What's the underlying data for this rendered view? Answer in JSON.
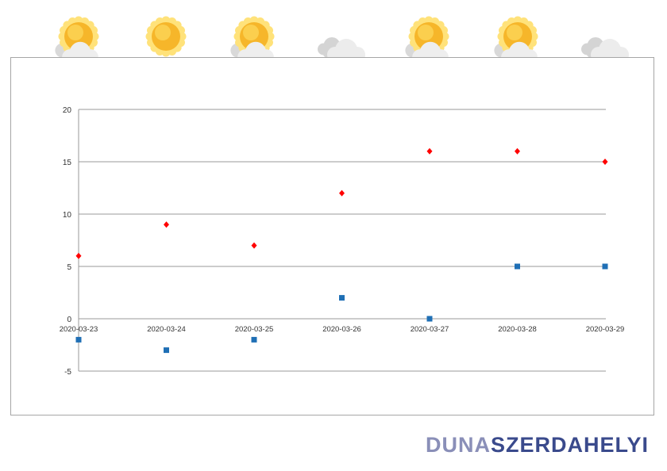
{
  "chart_data": {
    "type": "scatter",
    "categories": [
      "2020-03-23",
      "2020-03-24",
      "2020-03-25",
      "2020-03-26",
      "2020-03-27",
      "2020-03-28",
      "2020-03-29"
    ],
    "series": [
      {
        "values": [
          6,
          9,
          7,
          12,
          16,
          16,
          15
        ],
        "color": "#ff0000",
        "marker": "diamond"
      },
      {
        "values": [
          -2,
          -3,
          -2,
          2,
          0,
          5,
          5
        ],
        "color": "#1f6fb5",
        "marker": "square"
      }
    ],
    "y_ticks": [
      "20",
      "15",
      "10",
      "5",
      "0",
      "-5"
    ],
    "ylim": [
      -5,
      20
    ],
    "grid": true,
    "legend": "none",
    "title": "",
    "xlabel": "",
    "ylabel": ""
  },
  "weather_icons": [
    "partly-sunny-icon",
    "sunny-icon",
    "partly-sunny-icon",
    "cloudy-icon",
    "partly-sunny-icon",
    "partly-sunny-icon",
    "cloudy-icon"
  ],
  "logo": {
    "part1": "DUNA",
    "part2": "SZERDAHELYI"
  }
}
